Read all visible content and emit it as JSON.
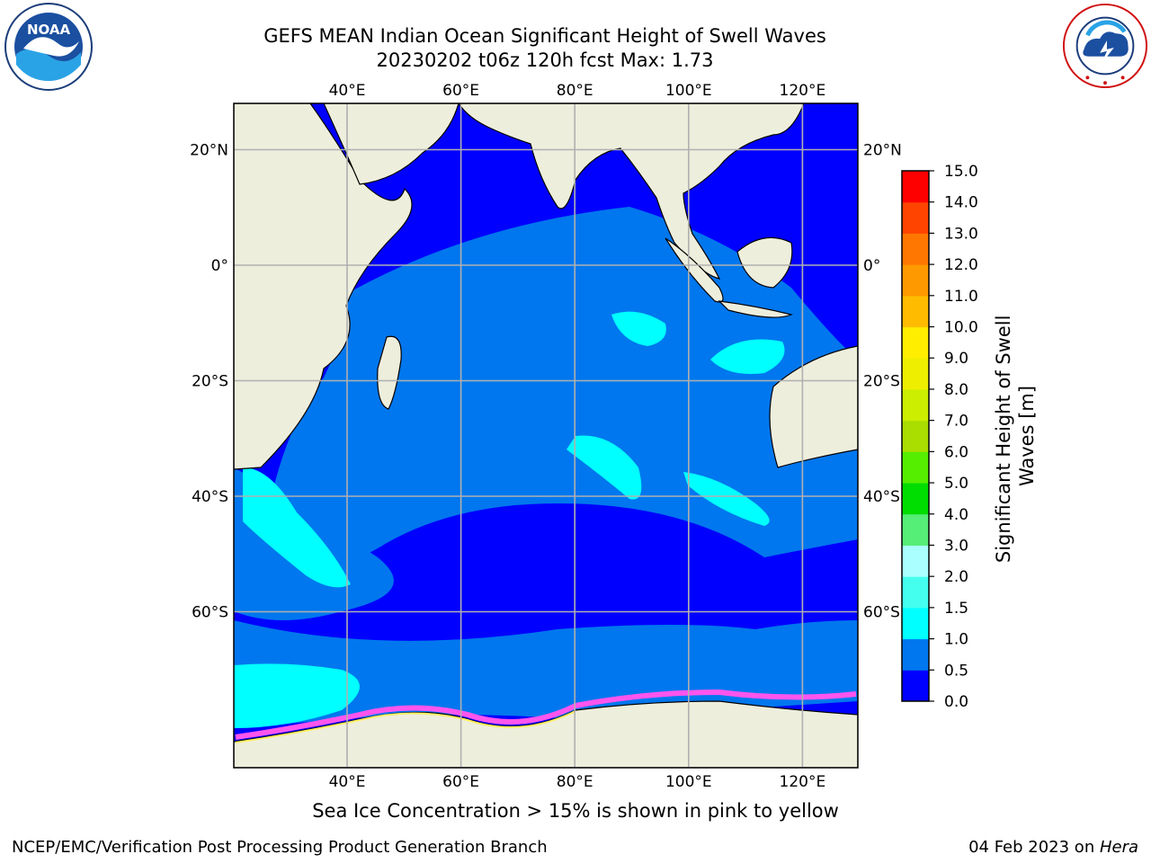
{
  "title_line1": "GEFS MEAN Indian Ocean Significant Height of Swell Waves",
  "title_line2": "20230202 t06z 120h fcst   Max: 1.73",
  "logos": {
    "left": {
      "icon": "noaa-logo",
      "text": "NOAA"
    },
    "right": {
      "icon": "nws-logo",
      "text": "NATIONAL WEATHER SERVICE"
    }
  },
  "map": {
    "projection": "cylindrical",
    "lon_range": [
      20,
      130
    ],
    "lat_range": [
      -75,
      28
    ],
    "top_lon_labels": [
      "40°E",
      "60°E",
      "80°E",
      "100°E",
      "120°E"
    ],
    "bottom_lon_labels": [
      "40°E",
      "60°E",
      "80°E",
      "100°E",
      "120°E"
    ],
    "lon_values": [
      40,
      60,
      80,
      100,
      120
    ],
    "lat_values": [
      20,
      0,
      -20,
      -40,
      -60
    ],
    "left_lat_labels": [
      "20°N",
      "0°",
      "20°S",
      "40°S",
      "60°S"
    ],
    "right_lat_labels": [
      "20°N",
      "0°",
      "20°S",
      "40°S",
      "60°S"
    ],
    "grid": true,
    "land_color": "#eeeedd",
    "ocean_base_color": "#0000ff"
  },
  "colorbar": {
    "title_line1": "Significant Height of Swell",
    "title_line2": "Waves [m]",
    "levels": [
      "0.0",
      "0.5",
      "1.0",
      "1.5",
      "2.0",
      "3.0",
      "4.0",
      "5.0",
      "6.0",
      "7.0",
      "8.0",
      "9.0",
      "10.0",
      "11.0",
      "12.0",
      "13.0",
      "14.0",
      "15.0"
    ],
    "level_values": [
      0,
      0.5,
      1.0,
      1.5,
      2.0,
      3.0,
      4.0,
      5.0,
      6.0,
      7.0,
      8.0,
      9.0,
      10.0,
      11.0,
      12.0,
      13.0,
      14.0,
      15.0
    ],
    "colors": [
      "#0000ff",
      "#0077ee",
      "#00ffff",
      "#44ffee",
      "#aaffff",
      "#55ee77",
      "#00dd00",
      "#55ee00",
      "#aadd00",
      "#ccee00",
      "#eeee00",
      "#ffee00",
      "#ffbb00",
      "#ff9900",
      "#ff7700",
      "#ff4400",
      "#ff0000"
    ]
  },
  "ice_note": "Sea Ice Concentration > 15% is shown in pink to yellow",
  "footer": {
    "left": "NCEP/EMC/Verification Post Processing Product Generation Branch",
    "right_prefix": "04 Feb 2023 on ",
    "right_host": "Hera"
  }
}
